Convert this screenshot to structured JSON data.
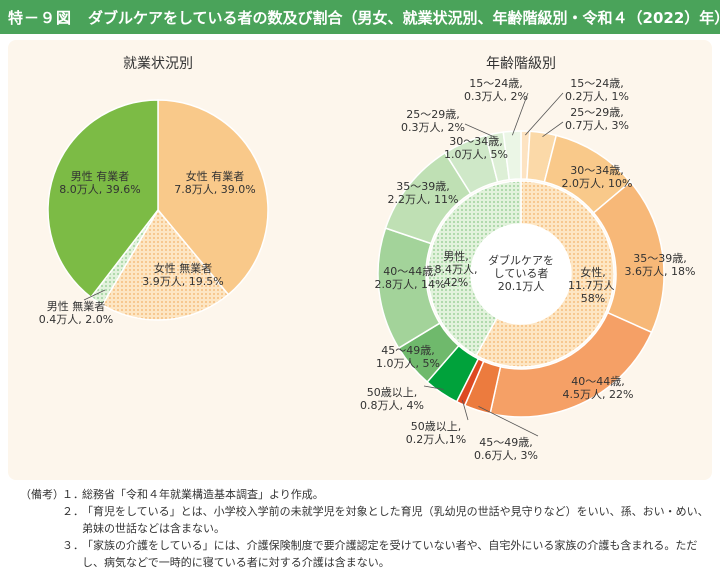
{
  "header": {
    "label": "特－９図",
    "title": "ダブルケアをしている者の数及び割合（男女、就業状況別、年齢階級別・令和４（2022）年）"
  },
  "colors": {
    "header_bg": "#4aa35a",
    "female_employed": "#f9c98a",
    "female_unemployed": "#fbd9a8",
    "male_employed": "#7cbb45",
    "male_unemployed": "#cfe8c8"
  },
  "chart_data": [
    {
      "type": "pie",
      "title": "就業状況別",
      "slices": [
        {
          "label": "女性 有業者",
          "detail": "7.8万人, 39.0%",
          "value": 39.0
        },
        {
          "label": "女性 無業者",
          "detail": "3.9万人, 19.5%",
          "value": 19.5
        },
        {
          "label": "男性 無業者",
          "detail": "0.4万人, 2.0%",
          "value": 2.0
        },
        {
          "label": "男性 有業者",
          "detail": "8.0万人, 39.6%",
          "value": 39.6
        }
      ]
    },
    {
      "type": "pie",
      "subtype": "donut",
      "title": "年齢階級別",
      "center_label": [
        "ダブルケアを",
        "している者",
        "20.1万人"
      ],
      "inner": [
        {
          "label": "女性,",
          "detail": [
            "11.7万人,",
            "58%"
          ],
          "value": 58
        },
        {
          "label": "男性,",
          "detail": [
            "8.4万人,",
            "42%"
          ],
          "value": 42
        }
      ],
      "outer": [
        {
          "label": "15～24歳,",
          "detail": "0.2万人, 1%",
          "value": 1,
          "sex": "female"
        },
        {
          "label": "25～29歳,",
          "detail": "0.7万人, 3%",
          "value": 3,
          "sex": "female"
        },
        {
          "label": "30～34歳,",
          "detail": "2.0万人, 10%",
          "value": 10,
          "sex": "female"
        },
        {
          "label": "35～39歳,",
          "detail": "3.6万人, 18%",
          "value": 18,
          "sex": "female"
        },
        {
          "label": "40～44歳,",
          "detail": "4.5万人, 22%",
          "value": 22,
          "sex": "female"
        },
        {
          "label": "45～49歳,",
          "detail": "0.6万人, 3%",
          "value": 3,
          "sex": "female"
        },
        {
          "label": "50歳以上,",
          "detail": "0.2万人,1%",
          "value": 1,
          "sex": "female"
        },
        {
          "label": "50歳以上,",
          "detail": "0.8万人, 4%",
          "value": 4,
          "sex": "male"
        },
        {
          "label": "45～49歳,",
          "detail": "1.0万人, 5%",
          "value": 5,
          "sex": "male"
        },
        {
          "label": "40～44歳,",
          "detail": "2.8万人, 14%",
          "value": 14,
          "sex": "male"
        },
        {
          "label": "35～39歳,",
          "detail": "2.2万人, 11%",
          "value": 11,
          "sex": "male"
        },
        {
          "label": "30～34歳,",
          "detail": "1.0万人, 5%",
          "value": 5,
          "sex": "male"
        },
        {
          "label": "25～29歳,",
          "detail": "0.3万人, 2%",
          "value": 2,
          "sex": "male"
        },
        {
          "label": "15～24歳,",
          "detail": "0.3万人, 2%",
          "value": 2,
          "sex": "male"
        }
      ]
    }
  ],
  "notes": {
    "head": "（備考）",
    "items": [
      {
        "num": "１．",
        "text": "総務省「令和４年就業構造基本調査」より作成。"
      },
      {
        "num": "２．",
        "text": "「育児をしている」とは、小学校入学前の未就学児を対象とした育児（乳幼児の世話や見守りなど）をいい、孫、おい・めい、弟妹の世話などは含まない。"
      },
      {
        "num": "３．",
        "text": "「家族の介護をしている」には、介護保険制度で要介護認定を受けていない者や、自宅外にいる家族の介護も含まれる。ただし、病気などで一時的に寝ている者に対する介護は含まない。"
      }
    ]
  }
}
